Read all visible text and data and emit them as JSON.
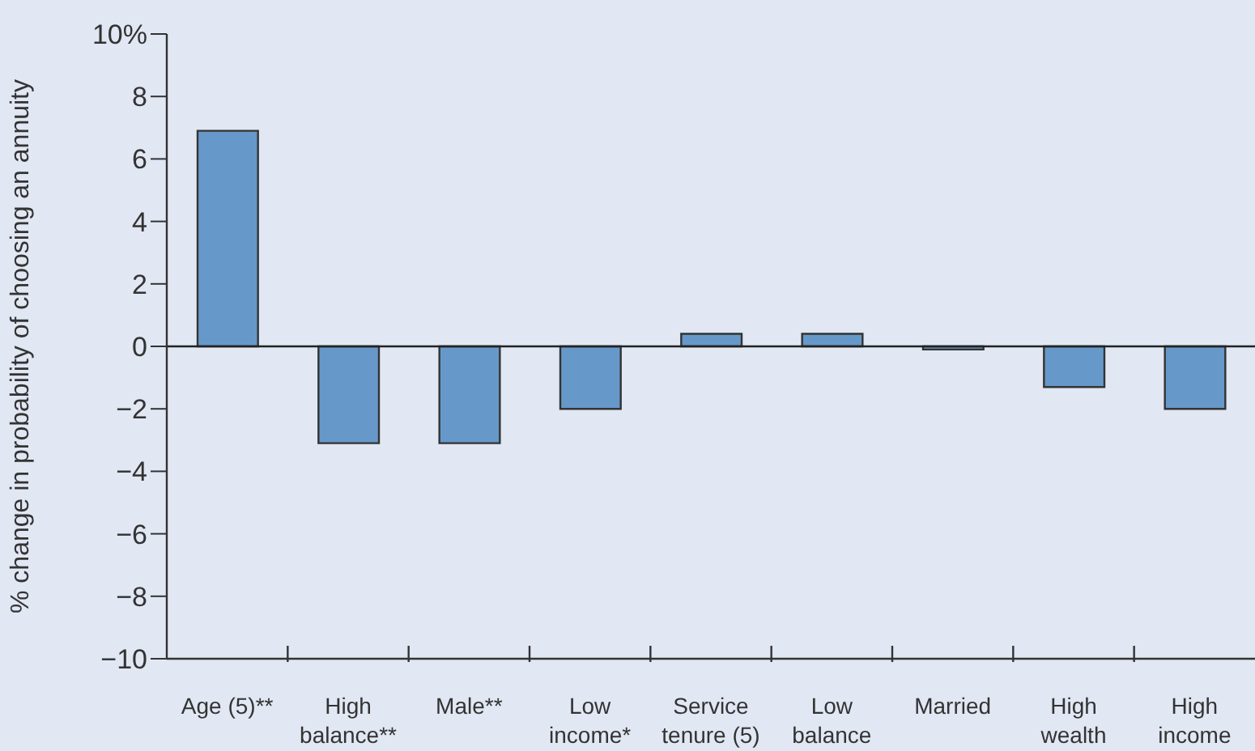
{
  "chart_data": {
    "type": "bar",
    "ylabel": "% change in probability of choosing an annuity",
    "categories": [
      "Age (5)**",
      "High balance**",
      "Male**",
      "Low income*",
      "Service tenure (5)",
      "Low balance",
      "Married",
      "High wealth",
      "High income"
    ],
    "values": [
      6.9,
      -3.1,
      -3.1,
      -2.0,
      0.4,
      0.4,
      -0.1,
      -1.3,
      -2.0
    ],
    "color": "#6699c9",
    "ylim": [
      -10,
      10
    ],
    "yticks": [
      {
        "value": -10,
        "label": "−10"
      },
      {
        "value": -8,
        "label": "−8"
      },
      {
        "value": -6,
        "label": "−6"
      },
      {
        "value": -4,
        "label": "−4"
      },
      {
        "value": -2,
        "label": "−2"
      },
      0,
      2,
      4,
      6,
      8,
      {
        "value": 10,
        "label": "10%"
      }
    ],
    "ref_lines": [
      {
        "axis": "y",
        "value": 0,
        "label": null,
        "color": "#222222"
      }
    ],
    "grid": false,
    "legend": false
  }
}
